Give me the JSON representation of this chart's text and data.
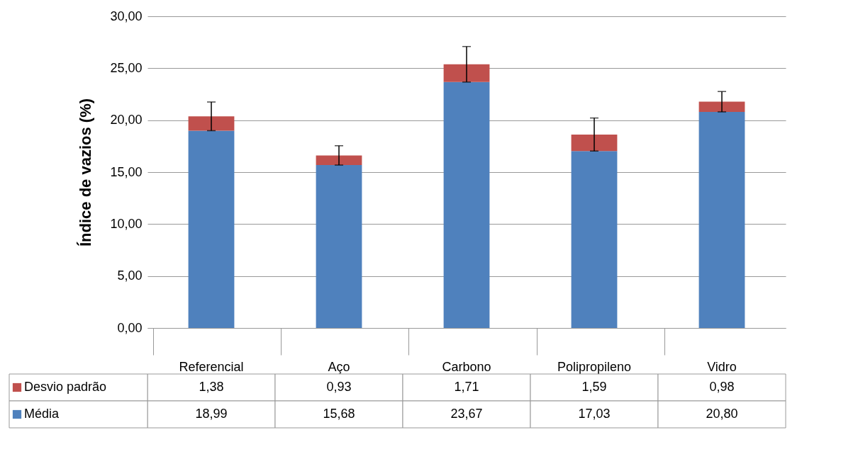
{
  "chart_data": {
    "type": "bar",
    "stacked": true,
    "ylabel": "Índice de vazios (%)",
    "categories": [
      "Referencial",
      "Aço",
      "Carbono",
      "Polipropileno",
      "Vidro"
    ],
    "series": [
      {
        "name": "Média",
        "color": "#4f81bd",
        "values": [
          18.99,
          15.68,
          23.67,
          17.03,
          20.8
        ],
        "value_labels": [
          "18,99",
          "15,68",
          "23,67",
          "17,03",
          "20,80"
        ]
      },
      {
        "name": "Desvio padrão",
        "color": "#c0504d",
        "values": [
          1.38,
          0.93,
          1.71,
          1.59,
          0.98
        ],
        "value_labels": [
          "1,38",
          "0,93",
          "1,71",
          "1,59",
          "0,98"
        ],
        "errors": [
          1.38,
          0.93,
          1.71,
          1.59,
          0.98
        ]
      }
    ],
    "ylim": [
      0,
      30
    ],
    "yticks": [
      {
        "value": 0,
        "label": "0,00"
      },
      {
        "value": 5,
        "label": "5,00"
      },
      {
        "value": 10,
        "label": "10,00"
      },
      {
        "value": 15,
        "label": "15,00"
      },
      {
        "value": 20,
        "label": "20,00"
      },
      {
        "value": 25,
        "label": "25,00"
      },
      {
        "value": 30,
        "label": "30,00"
      }
    ],
    "grid": "y",
    "legend": "bottom left"
  }
}
